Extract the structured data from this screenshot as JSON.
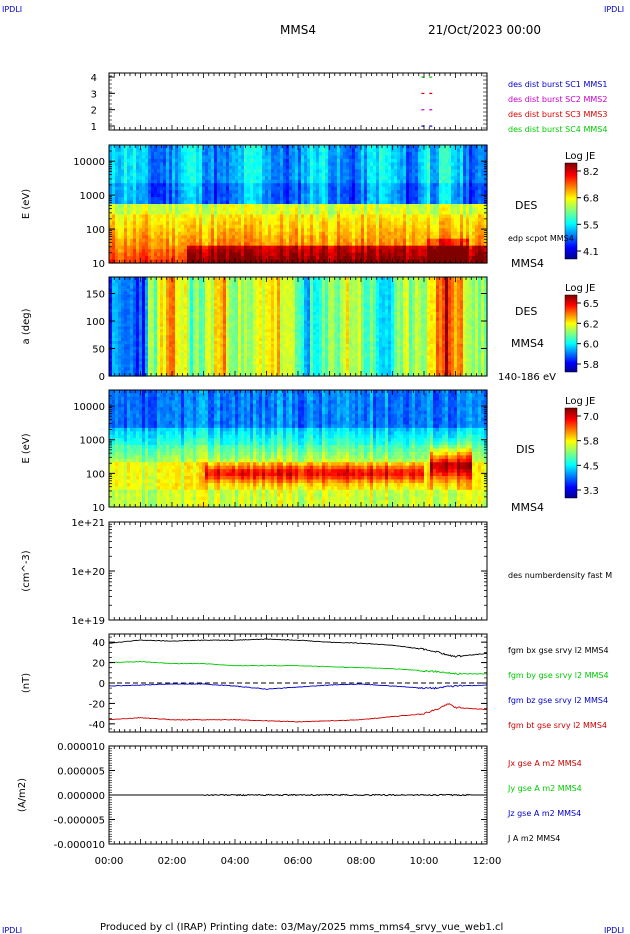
{
  "header": {
    "corner_tl": "IPDLI",
    "corner_tr": "IPDLI",
    "corner_bl": "IPDLI",
    "corner_br": "IPDLI",
    "spacecraft": "MMS4",
    "datetime": "21/Oct/2023 00:00"
  },
  "footer": {
    "text": "Produced by cl (IRAP)   Printing date: 03/May/2025   mms_mms4_srvy_vue_web1.cl"
  },
  "colors": {
    "sc1": "#0000cc",
    "sc2": "#cc00cc",
    "sc3": "#dd0000",
    "sc4": "#00cc00",
    "bx": "#000000",
    "by": "#00cc00",
    "bz": "#0000cc",
    "bt": "#cc0000"
  },
  "chart_data": [
    {
      "type": "scatter",
      "ylabel": "",
      "ylim": [
        1,
        4
      ],
      "yticks": [
        "1",
        "2",
        "3",
        "4"
      ],
      "legend": [
        "des dist burst SC1 MMS1",
        "des dist burst SC2 MMS2",
        "des dist burst SC3 MMS3",
        "des dist burst SC4 MMS4"
      ],
      "series": [
        {
          "name": "des dist burst SC1 MMS1",
          "y": 1,
          "x": [
            "09:55",
            "10:10"
          ]
        },
        {
          "name": "des dist burst SC2 MMS2",
          "y": 2,
          "x": [
            "09:55",
            "10:10"
          ]
        },
        {
          "name": "des dist burst SC3 MMS3",
          "y": 3,
          "x": [
            "09:55",
            "10:10"
          ]
        },
        {
          "name": "des dist burst SC4 MMS4",
          "y": 4,
          "x": [
            "09:55",
            "10:10"
          ]
        }
      ]
    },
    {
      "type": "heatmap",
      "ylabel": "E (eV)",
      "yscale": "log",
      "ylim": [
        10,
        30000
      ],
      "yticks": [
        "10",
        "100",
        "1000",
        "10000"
      ],
      "right_labels": [
        "DES",
        "edp scpot MMS4",
        "MMS4"
      ],
      "colorbar": {
        "title": "Log JE",
        "ticks": [
          "8.2",
          "6.8",
          "5.5",
          "4.1"
        ],
        "range": [
          4.1,
          8.2
        ]
      }
    },
    {
      "type": "heatmap",
      "ylabel": "a (deg)",
      "ylim": [
        0,
        180
      ],
      "yticks": [
        "0",
        "50",
        "100",
        "150"
      ],
      "right_labels": [
        "DES",
        "MMS4",
        "140-186 eV"
      ],
      "colorbar": {
        "title": "Log JE",
        "ticks": [
          "6.5",
          "6.2",
          "6.0",
          "5.8"
        ],
        "range": [
          5.8,
          6.5
        ]
      }
    },
    {
      "type": "heatmap",
      "ylabel": "E (eV)",
      "yscale": "log",
      "ylim": [
        10,
        30000
      ],
      "yticks": [
        "10",
        "100",
        "1000",
        "10000"
      ],
      "right_labels": [
        "DIS",
        "MMS4"
      ],
      "colorbar": {
        "title": "Log JE",
        "ticks": [
          "7.0",
          "5.8",
          "4.5",
          "3.3"
        ],
        "range": [
          3.3,
          7.0
        ]
      }
    },
    {
      "type": "line",
      "ylabel": "(cm^-3)",
      "yscale": "log",
      "ylim": [
        1e+19,
        1e+21
      ],
      "yticks": [
        "1e+19",
        "1e+20",
        "1e+21"
      ],
      "legend": [
        "des numberdensity fast M"
      ],
      "series": []
    },
    {
      "type": "line",
      "ylabel": "(nT)",
      "ylim": [
        -48,
        48
      ],
      "yticks": [
        "-40",
        "-20",
        "0",
        "20",
        "40"
      ],
      "legend": [
        "fgm bx gse srvy l2 MMS4",
        "fgm by gse srvy l2 MMS4",
        "fgm bz gse srvy l2 MMS4",
        "fgm bt gse srvy l2 MMS4"
      ],
      "x": [
        0,
        1,
        2,
        3,
        4,
        5,
        6,
        7,
        8,
        9,
        10,
        10.5,
        10.75,
        11,
        12
      ],
      "series": [
        {
          "name": "fgm bx gse srvy l2 MMS4",
          "values": [
            39,
            42,
            41,
            42,
            42,
            43,
            42,
            40,
            39,
            37,
            33,
            30,
            27,
            26,
            29
          ]
        },
        {
          "name": "fgm by gse srvy l2 MMS4",
          "values": [
            20,
            21,
            19,
            19,
            17,
            17,
            17,
            16,
            15,
            14,
            12,
            11,
            10,
            9,
            9
          ]
        },
        {
          "name": "fgm bz gse srvy l2 MMS4",
          "values": [
            -3,
            -2,
            -1,
            -1,
            -3,
            -6,
            -4,
            -2,
            -1,
            -3,
            -5,
            -5,
            -3,
            -3,
            -2
          ]
        },
        {
          "name": "fgm bt gse srvy l2 MMS4",
          "values": [
            -36,
            -34,
            -36,
            -36,
            -36,
            -37,
            -38,
            -37,
            -36,
            -33,
            -30,
            -25,
            -20,
            -24,
            -26
          ]
        }
      ]
    },
    {
      "type": "line",
      "ylabel": "(A/m2)",
      "ylim": [
        -1e-05,
        1e-05
      ],
      "yticks": [
        "-0.000010",
        "-0.000005",
        "0.000000",
        "0.000005",
        "0.000010"
      ],
      "legend": [
        "Jx gse A m2 MMS4",
        "Jy gse A m2 MMS4",
        "Jz gse A m2 MMS4",
        "J A m2 MMS4"
      ],
      "x": [
        0,
        12
      ],
      "series": [
        {
          "name": "J A m2 MMS4",
          "values": [
            0,
            0
          ]
        }
      ]
    }
  ],
  "time_axis": {
    "ticks": [
      "00:00",
      "02:00",
      "04:00",
      "06:00",
      "08:00",
      "10:00",
      "12:00"
    ],
    "range_hours": [
      0,
      12
    ]
  }
}
